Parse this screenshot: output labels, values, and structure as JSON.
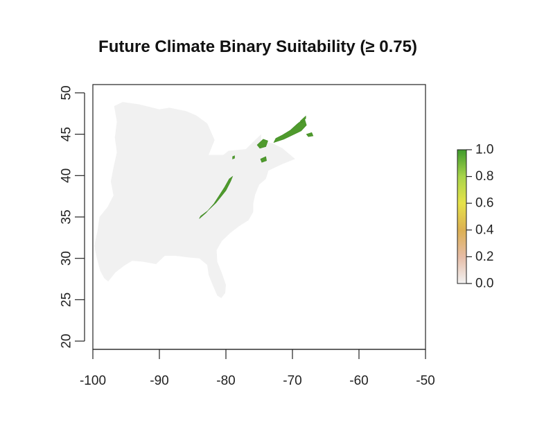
{
  "chart_data": {
    "type": "heatmap",
    "title": "Future Climate Binary Suitability (≥ 0.75)",
    "xlabel": "",
    "ylabel": "",
    "xlim": [
      -100,
      -50
    ],
    "ylim": [
      19,
      51
    ],
    "x_ticks": [
      -100,
      -90,
      -80,
      -70,
      -60,
      -50
    ],
    "y_ticks": [
      20,
      25,
      30,
      35,
      40,
      45,
      50
    ],
    "x_tick_labels": [
      "-100",
      "-90",
      "-80",
      "-70",
      "-60",
      "-50"
    ],
    "y_tick_labels": [
      "20",
      "25",
      "30",
      "35",
      "40",
      "45",
      "50"
    ],
    "grid": false,
    "legend": {
      "placement": "right",
      "range": [
        0,
        1
      ],
      "ticks": [
        0.0,
        0.2,
        0.4,
        0.6,
        0.8,
        1.0
      ],
      "tick_labels": [
        "0.0",
        "0.2",
        "0.4",
        "0.6",
        "0.8",
        "1.0"
      ],
      "colors": [
        "#f2f2f2",
        "#e6bca6",
        "#dcb052",
        "#e6e24a",
        "#a8d44a",
        "#3f9a2c"
      ]
    },
    "region": {
      "name": "unsuitable-area",
      "value": 0,
      "color": "#f1f1f1",
      "outline_lonlat": [
        [
          -96.8,
          48.4
        ],
        [
          -95.5,
          48.9
        ],
        [
          -93.0,
          48.6
        ],
        [
          -90.0,
          48.0
        ],
        [
          -88.5,
          48.2
        ],
        [
          -86.0,
          47.8
        ],
        [
          -84.5,
          47.3
        ],
        [
          -82.8,
          46.3
        ],
        [
          -81.7,
          44.3
        ],
        [
          -82.6,
          42.5
        ],
        [
          -80.4,
          42.5
        ],
        [
          -79.6,
          43.0
        ],
        [
          -77.0,
          43.2
        ],
        [
          -76.0,
          44.0
        ],
        [
          -74.7,
          45.0
        ],
        [
          -74.7,
          44.2
        ],
        [
          -73.0,
          43.9
        ],
        [
          -71.5,
          43.3
        ],
        [
          -69.6,
          42.0
        ],
        [
          -71.5,
          41.4
        ],
        [
          -73.6,
          40.6
        ],
        [
          -74.0,
          39.6
        ],
        [
          -75.0,
          38.9
        ],
        [
          -75.6,
          37.7
        ],
        [
          -75.9,
          36.6
        ],
        [
          -75.9,
          35.6
        ],
        [
          -76.6,
          34.6
        ],
        [
          -78.0,
          33.9
        ],
        [
          -79.3,
          33.1
        ],
        [
          -80.6,
          32.1
        ],
        [
          -81.4,
          31.0
        ],
        [
          -81.3,
          29.6
        ],
        [
          -80.6,
          28.2
        ],
        [
          -80.0,
          26.8
        ],
        [
          -80.1,
          25.8
        ],
        [
          -80.7,
          25.2
        ],
        [
          -81.3,
          25.5
        ],
        [
          -81.9,
          26.6
        ],
        [
          -82.6,
          28.0
        ],
        [
          -82.8,
          29.2
        ],
        [
          -84.0,
          30.0
        ],
        [
          -85.5,
          30.1
        ],
        [
          -87.5,
          30.3
        ],
        [
          -89.2,
          30.3
        ],
        [
          -90.5,
          29.3
        ],
        [
          -92.5,
          29.6
        ],
        [
          -94.1,
          29.7
        ],
        [
          -95.3,
          29.1
        ],
        [
          -96.6,
          28.3
        ],
        [
          -97.7,
          27.2
        ],
        [
          -98.3,
          27.6
        ],
        [
          -98.9,
          28.5
        ],
        [
          -99.4,
          30.0
        ],
        [
          -99.8,
          31.5
        ],
        [
          -99.3,
          33.3
        ],
        [
          -99.0,
          35.0
        ],
        [
          -97.8,
          36.2
        ],
        [
          -96.9,
          37.6
        ],
        [
          -97.3,
          39.3
        ],
        [
          -96.9,
          41.0
        ],
        [
          -96.4,
          42.8
        ],
        [
          -96.7,
          44.6
        ],
        [
          -96.4,
          46.5
        ],
        [
          -96.8,
          48.4
        ]
      ]
    },
    "suitable_patches": [
      {
        "name": "appalachian-ridge",
        "value": 1,
        "outline_lonlat": [
          [
            -83.8,
            35.1
          ],
          [
            -82.8,
            35.7
          ],
          [
            -81.5,
            36.7
          ],
          [
            -80.8,
            37.4
          ],
          [
            -80.0,
            38.2
          ],
          [
            -79.3,
            39.3
          ],
          [
            -79.0,
            39.9
          ],
          [
            -79.5,
            39.6
          ],
          [
            -80.2,
            38.6
          ],
          [
            -81.0,
            37.6
          ],
          [
            -81.8,
            36.6
          ],
          [
            -83.0,
            35.5
          ],
          [
            -84.0,
            34.8
          ]
        ]
      },
      {
        "name": "catskills",
        "value": 1,
        "outline_lonlat": [
          [
            -74.8,
            42.0
          ],
          [
            -74.0,
            42.3
          ],
          [
            -73.9,
            41.8
          ],
          [
            -74.6,
            41.6
          ]
        ]
      },
      {
        "name": "adirondacks",
        "value": 1,
        "outline_lonlat": [
          [
            -75.3,
            43.7
          ],
          [
            -74.4,
            44.4
          ],
          [
            -73.7,
            44.2
          ],
          [
            -74.0,
            43.5
          ],
          [
            -74.9,
            43.3
          ]
        ]
      },
      {
        "name": "vermont-new-hampshire-maine",
        "value": 1,
        "outline_lonlat": [
          [
            -72.8,
            44.0
          ],
          [
            -71.3,
            44.4
          ],
          [
            -70.0,
            44.9
          ],
          [
            -68.7,
            45.4
          ],
          [
            -67.9,
            46.1
          ],
          [
            -68.2,
            46.9
          ],
          [
            -69.2,
            46.3
          ],
          [
            -70.3,
            45.5
          ],
          [
            -71.5,
            44.9
          ],
          [
            -72.5,
            44.5
          ]
        ]
      },
      {
        "name": "eastern-maine-coast",
        "value": 1,
        "outline_lonlat": [
          [
            -67.9,
            45.0
          ],
          [
            -67.1,
            45.2
          ],
          [
            -66.9,
            44.8
          ],
          [
            -67.6,
            44.7
          ]
        ]
      },
      {
        "name": "northern-maine",
        "value": 1,
        "outline_lonlat": [
          [
            -68.8,
            46.6
          ],
          [
            -68.0,
            47.2
          ],
          [
            -68.0,
            46.9
          ],
          [
            -68.6,
            46.4
          ]
        ]
      },
      {
        "name": "western-pennsylvania",
        "value": 1,
        "outline_lonlat": [
          [
            -79.0,
            42.3
          ],
          [
            -78.7,
            42.4
          ],
          [
            -78.7,
            42.1
          ],
          [
            -79.0,
            42.0
          ]
        ]
      }
    ]
  }
}
